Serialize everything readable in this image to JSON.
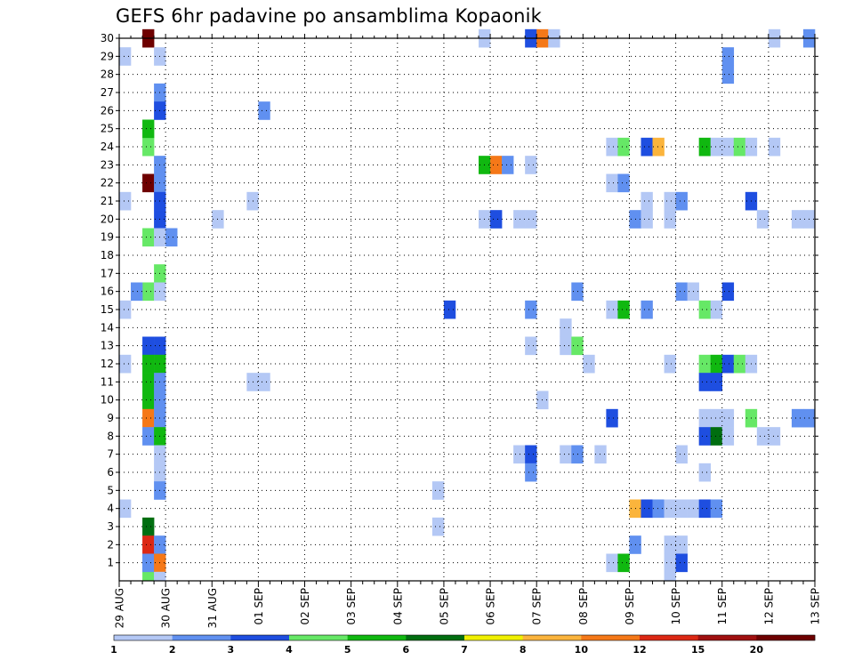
{
  "chart_data": {
    "type": "heatmap",
    "title": "GEFS 6hr padavine po ansamblima Kopaonik",
    "x_tick_labels": [
      "29 AUG",
      "30 AUG",
      "31 AUG",
      "01 SEP",
      "02 SEP",
      "03 SEP",
      "04 SEP",
      "05 SEP",
      "06 SEP",
      "07 SEP",
      "08 SEP",
      "09 SEP",
      "10 SEP",
      "11 SEP",
      "12 SEP",
      "13 SEP"
    ],
    "y_tick_labels": [
      "1",
      "2",
      "3",
      "4",
      "5",
      "6",
      "7",
      "8",
      "9",
      "10",
      "11",
      "12",
      "13",
      "14",
      "15",
      "16",
      "17",
      "18",
      "19",
      "20",
      "21",
      "22",
      "23",
      "24",
      "25",
      "26",
      "27",
      "28",
      "29",
      "30"
    ],
    "ylim": [
      0,
      30
    ],
    "time_steps": 60,
    "grid": true,
    "legend": {
      "placement": "bottom",
      "levels": [
        "1",
        "2",
        "3",
        "4",
        "5",
        "6",
        "7",
        "8",
        "10",
        "12",
        "15",
        "20"
      ],
      "colors": [
        "#b4c8f5",
        "#6090f0",
        "#1e4ee0",
        "#66e866",
        "#10b810",
        "#006e10",
        "#f0f000",
        "#fbb43c",
        "#f57818",
        "#dc2814",
        "#a01010",
        "#6e0000"
      ]
    },
    "cells": [
      [
        2,
        30,
        11
      ],
      [
        2,
        22,
        11
      ],
      [
        2,
        24,
        3
      ],
      [
        2,
        25,
        4
      ],
      [
        2,
        19,
        3
      ],
      [
        2,
        16,
        3
      ],
      [
        2,
        13,
        2
      ],
      [
        2,
        12,
        4
      ],
      [
        2,
        11,
        4
      ],
      [
        2,
        10,
        4
      ],
      [
        2,
        9,
        8
      ],
      [
        2,
        8,
        1
      ],
      [
        2,
        3,
        5
      ],
      [
        2,
        2,
        9
      ],
      [
        2,
        1,
        1
      ],
      [
        2,
        0,
        3
      ],
      [
        2,
        1,
        1
      ],
      [
        3,
        29,
        0
      ],
      [
        3,
        27,
        1
      ],
      [
        3,
        26,
        2
      ],
      [
        3,
        23,
        1
      ],
      [
        3,
        22,
        1
      ],
      [
        3,
        21,
        2
      ],
      [
        3,
        20,
        2
      ],
      [
        3,
        19,
        0
      ],
      [
        3,
        17,
        3
      ],
      [
        3,
        16,
        0
      ],
      [
        3,
        13,
        2
      ],
      [
        3,
        12,
        4
      ],
      [
        3,
        11,
        1
      ],
      [
        3,
        10,
        1
      ],
      [
        3,
        9,
        1
      ],
      [
        3,
        8,
        4
      ],
      [
        3,
        7,
        0
      ],
      [
        3,
        6,
        0
      ],
      [
        3,
        5,
        1
      ],
      [
        3,
        2,
        1
      ],
      [
        3,
        1,
        8
      ],
      [
        3,
        0,
        0
      ],
      [
        4,
        19,
        1
      ],
      [
        0,
        29,
        0
      ],
      [
        0,
        21,
        0
      ],
      [
        0,
        15,
        0
      ],
      [
        0,
        12,
        0
      ],
      [
        0,
        4,
        0
      ],
      [
        1,
        16,
        1
      ],
      [
        8,
        20,
        0
      ],
      [
        11,
        21,
        0
      ],
      [
        11,
        11,
        0
      ],
      [
        12,
        11,
        0
      ],
      [
        12,
        26,
        1
      ],
      [
        28,
        15,
        2
      ],
      [
        27,
        5,
        0
      ],
      [
        27,
        3,
        0
      ],
      [
        31,
        30,
        0
      ],
      [
        31,
        20,
        0
      ],
      [
        31,
        23,
        4
      ],
      [
        32,
        23,
        8
      ],
      [
        33,
        23,
        1
      ],
      [
        32,
        20,
        2
      ],
      [
        35,
        23,
        0
      ],
      [
        35,
        20,
        0
      ],
      [
        34,
        20,
        0
      ],
      [
        34,
        7,
        0
      ],
      [
        35,
        7,
        2
      ],
      [
        35,
        6,
        1
      ],
      [
        35,
        15,
        1
      ],
      [
        35,
        13,
        0
      ],
      [
        35,
        30,
        2
      ],
      [
        36,
        30,
        8
      ],
      [
        37,
        30,
        0
      ],
      [
        36,
        10,
        0
      ],
      [
        38,
        14,
        0
      ],
      [
        38,
        13,
        0
      ],
      [
        38,
        7,
        0
      ],
      [
        39,
        13,
        3
      ],
      [
        39,
        7,
        1
      ],
      [
        39,
        16,
        1
      ],
      [
        40,
        12,
        0
      ],
      [
        41,
        7,
        0
      ],
      [
        42,
        15,
        0
      ],
      [
        42,
        9,
        2
      ],
      [
        42,
        24,
        0
      ],
      [
        42,
        22,
        0
      ],
      [
        42,
        1,
        0
      ],
      [
        43,
        24,
        3
      ],
      [
        43,
        22,
        1
      ],
      [
        43,
        15,
        4
      ],
      [
        43,
        1,
        4
      ],
      [
        44,
        4,
        7
      ],
      [
        45,
        4,
        2
      ],
      [
        46,
        4,
        1
      ],
      [
        44,
        20,
        1
      ],
      [
        44,
        2,
        1
      ],
      [
        45,
        24,
        2
      ],
      [
        45,
        21,
        0
      ],
      [
        45,
        20,
        0
      ],
      [
        45,
        15,
        1
      ],
      [
        46,
        24,
        7
      ],
      [
        47,
        20,
        0
      ],
      [
        47,
        21,
        0
      ],
      [
        47,
        12,
        0
      ],
      [
        47,
        4,
        0
      ],
      [
        47,
        2,
        0
      ],
      [
        47,
        1,
        0
      ],
      [
        47,
        0,
        0
      ],
      [
        48,
        16,
        1
      ],
      [
        48,
        21,
        1
      ],
      [
        48,
        4,
        0
      ],
      [
        48,
        2,
        0
      ],
      [
        48,
        1,
        2
      ],
      [
        48,
        7,
        0
      ],
      [
        49,
        16,
        0
      ],
      [
        49,
        4,
        0
      ],
      [
        50,
        24,
        4
      ],
      [
        50,
        15,
        3
      ],
      [
        50,
        12,
        3
      ],
      [
        50,
        11,
        2
      ],
      [
        50,
        9,
        0
      ],
      [
        50,
        8,
        2
      ],
      [
        50,
        6,
        0
      ],
      [
        50,
        4,
        2
      ],
      [
        51,
        24,
        0
      ],
      [
        51,
        15,
        0
      ],
      [
        51,
        12,
        4
      ],
      [
        51,
        11,
        2
      ],
      [
        51,
        9,
        0
      ],
      [
        51,
        8,
        5
      ],
      [
        51,
        4,
        1
      ],
      [
        52,
        24,
        0
      ],
      [
        52,
        12,
        2
      ],
      [
        52,
        8,
        0
      ],
      [
        52,
        9,
        0
      ],
      [
        52,
        16,
        2
      ],
      [
        52,
        28,
        1
      ],
      [
        52,
        29,
        1
      ],
      [
        53,
        24,
        3
      ],
      [
        53,
        12,
        3
      ],
      [
        54,
        24,
        0
      ],
      [
        54,
        21,
        2
      ],
      [
        54,
        12,
        0
      ],
      [
        54,
        9,
        3
      ],
      [
        55,
        20,
        0
      ],
      [
        55,
        8,
        0
      ],
      [
        56,
        8,
        0
      ],
      [
        56,
        24,
        0
      ],
      [
        58,
        20,
        0
      ],
      [
        59,
        20,
        0
      ],
      [
        59,
        9,
        1
      ],
      [
        58,
        9,
        1
      ],
      [
        56,
        30,
        0
      ],
      [
        59,
        30,
        1
      ]
    ]
  }
}
